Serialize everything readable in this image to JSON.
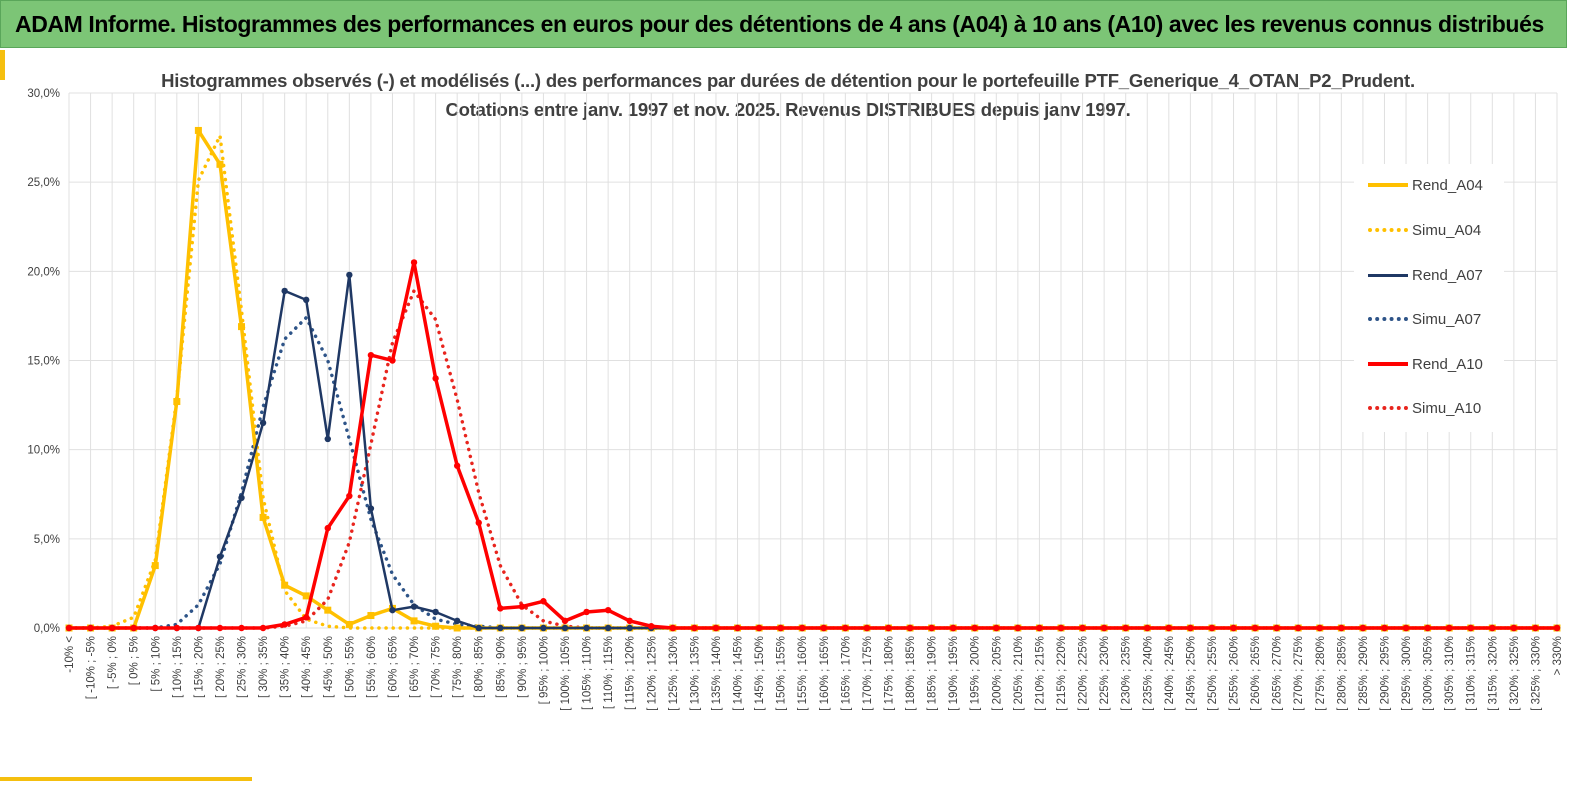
{
  "banner": {
    "title": "ADAM Informe. Histogrammes des performances en euros pour des détentions de 4 ans (A04) à 10 ans (A10) avec les revenus connus distribués"
  },
  "colors": {
    "banner_bg": "#7cc576",
    "accent": "#f5bf0f",
    "A04": "#ffc000",
    "A07": "#1f3864",
    "A07_simu": "#2e5488",
    "A10": "#ff0000",
    "A10_simu": "#e8251e",
    "grid": "#e0e0e0"
  },
  "chart_data": {
    "type": "line",
    "title_line1": "Histogrammes observés (-) et modélisés (...) des performances par durées de détention pour le portefeuille PTF_Generique_4_OTAN_P2_Prudent.",
    "title_line2": "Cotations entre janv. 1997 et nov. 2025. Revenus DISTRIBUES depuis janv 1997.",
    "xlabel": "",
    "ylabel": "",
    "ylim": [
      0,
      30
    ],
    "yticks": [
      "0,0%",
      "5,0%",
      "10,0%",
      "15,0%",
      "20,0%",
      "25,0%",
      "30,0%"
    ],
    "grid": true,
    "legend_position": "right",
    "categories": [
      "-10% <",
      "[ -10% ; -5%",
      "[ -5% ; 0%",
      "[ 0% ; 5%",
      "[ 5% ; 10%",
      "[ 10% ; 15%",
      "[ 15% ; 20%",
      "[ 20% ; 25%",
      "[ 25% ; 30%",
      "[ 30% ; 35%",
      "[ 35% ; 40%",
      "[ 40% ; 45%",
      "[ 45% ; 50%",
      "[ 50% ; 55%",
      "[ 55% ; 60%",
      "[ 60% ; 65%",
      "[ 65% ; 70%",
      "[ 70% ; 75%",
      "[ 75% ; 80%",
      "[ 80% ; 85%",
      "[ 85% ; 90%",
      "[ 90% ; 95%",
      "[ 95% ; 100%",
      "[ 100% ; 105%",
      "[ 105% ; 110%",
      "[ 110% ; 115%",
      "[ 115% ; 120%",
      "[ 120% ; 125%",
      "[ 125% ; 130%",
      "[ 130% ; 135%",
      "[ 135% ; 140%",
      "[ 140% ; 145%",
      "[ 145% ; 150%",
      "[ 150% ; 155%",
      "[ 155% ; 160%",
      "[ 160% ; 165%",
      "[ 165% ; 170%",
      "[ 170% ; 175%",
      "[ 175% ; 180%",
      "[ 180% ; 185%",
      "[ 185% ; 190%",
      "[ 190% ; 195%",
      "[ 195% ; 200%",
      "[ 200% ; 205%",
      "[ 205% ; 210%",
      "[ 210% ; 215%",
      "[ 215% ; 220%",
      "[ 220% ; 225%",
      "[ 225% ; 230%",
      "[ 230% ; 235%",
      "[ 235% ; 240%",
      "[ 240% ; 245%",
      "[ 245% ; 250%",
      "[ 250% ; 255%",
      "[ 255% ; 260%",
      "[ 260% ; 265%",
      "[ 265% ; 270%",
      "[ 270% ; 275%",
      "[ 275% ; 280%",
      "[ 280% ; 285%",
      "[ 285% ; 290%",
      "[ 290% ; 295%",
      "[ 295% ; 300%",
      "[ 300% ; 305%",
      "[ 305% ; 310%",
      "[ 310% ; 315%",
      "[ 315% ; 320%",
      "[ 320% ; 325%",
      "[ 325% ; 330%",
      "> 330%"
    ],
    "series": [
      {
        "name": "Rend_A04",
        "style": "solid",
        "marker": "square",
        "color": "#ffc000",
        "values": [
          0,
          0,
          0,
          0,
          3.5,
          12.7,
          27.9,
          26.0,
          16.9,
          6.2,
          2.4,
          1.8,
          1.0,
          0.2,
          0.7,
          1.1,
          0.4,
          0.1,
          0,
          0,
          0,
          0,
          0,
          0,
          0,
          0,
          0,
          0,
          0,
          0,
          0,
          0,
          0,
          0,
          0,
          0,
          0,
          0,
          0,
          0,
          0,
          0,
          0,
          0,
          0,
          0,
          0,
          0,
          0,
          0,
          0,
          0,
          0,
          0,
          0,
          0,
          0,
          0,
          0,
          0,
          0,
          0,
          0,
          0,
          0,
          0,
          0,
          0,
          0,
          0
        ]
      },
      {
        "name": "Simu_A04",
        "style": "dotted",
        "marker": "none",
        "color": "#ffc000",
        "values": [
          0,
          0,
          0.1,
          0.6,
          3.8,
          12.9,
          25.1,
          27.6,
          17.8,
          7.3,
          2.1,
          0.5,
          0.1,
          0,
          0,
          0,
          0,
          0,
          0,
          0,
          0,
          0,
          0,
          0,
          0,
          0,
          0,
          0,
          0,
          0,
          0,
          0,
          0,
          0,
          0,
          0,
          0,
          0,
          0,
          0,
          0,
          0,
          0,
          0,
          0,
          0,
          0,
          0,
          0,
          0,
          0,
          0,
          0,
          0,
          0,
          0,
          0,
          0,
          0,
          0,
          0,
          0,
          0,
          0,
          0,
          0,
          0,
          0,
          0,
          0
        ]
      },
      {
        "name": "Rend_A07",
        "style": "solid",
        "marker": "circle",
        "color": "#1f3864",
        "values": [
          0,
          0,
          0,
          0,
          0,
          0,
          0,
          4.0,
          7.3,
          11.5,
          18.9,
          18.4,
          10.6,
          19.8,
          6.7,
          1.0,
          1.2,
          0.9,
          0.4,
          0,
          0,
          0,
          0,
          0,
          0,
          0,
          0,
          0,
          0,
          0,
          0,
          0,
          0,
          0,
          0,
          0,
          0,
          0,
          0,
          0,
          0,
          0,
          0,
          0,
          0,
          0,
          0,
          0,
          0,
          0,
          0,
          0,
          0,
          0,
          0,
          0,
          0,
          0,
          0,
          0,
          0,
          0,
          0,
          0,
          0,
          0,
          0,
          0,
          0,
          0
        ]
      },
      {
        "name": "Simu_A07",
        "style": "dotted",
        "marker": "none",
        "color": "#2e5488",
        "values": [
          0,
          0,
          0,
          0,
          0,
          0.2,
          1.3,
          3.6,
          7.6,
          12.4,
          16.2,
          17.4,
          15.0,
          10.6,
          6.1,
          3.0,
          1.3,
          0.5,
          0.2,
          0.1,
          0,
          0,
          0,
          0,
          0,
          0,
          0,
          0,
          0,
          0,
          0,
          0,
          0,
          0,
          0,
          0,
          0,
          0,
          0,
          0,
          0,
          0,
          0,
          0,
          0,
          0,
          0,
          0,
          0,
          0,
          0,
          0,
          0,
          0,
          0,
          0,
          0,
          0,
          0,
          0,
          0,
          0,
          0,
          0,
          0,
          0,
          0,
          0,
          0,
          0
        ]
      },
      {
        "name": "Rend_A10",
        "style": "solid",
        "marker": "circle",
        "color": "#ff0000",
        "values": [
          0,
          0,
          0,
          0,
          0,
          0,
          0,
          0,
          0,
          0,
          0.2,
          0.6,
          5.6,
          7.4,
          15.3,
          15.0,
          20.5,
          14.0,
          9.1,
          5.9,
          1.1,
          1.2,
          1.5,
          0.4,
          0.9,
          1.0,
          0.4,
          0.1,
          0,
          0,
          0,
          0,
          0,
          0,
          0,
          0,
          0,
          0,
          0,
          0,
          0,
          0,
          0,
          0,
          0,
          0,
          0,
          0,
          0,
          0,
          0,
          0,
          0,
          0,
          0,
          0,
          0,
          0,
          0,
          0,
          0,
          0,
          0,
          0,
          0,
          0,
          0,
          0,
          0,
          0
        ]
      },
      {
        "name": "Simu_A10",
        "style": "dotted",
        "marker": "none",
        "color": "#e8251e",
        "values": [
          0,
          0,
          0,
          0,
          0,
          0,
          0,
          0,
          0,
          0,
          0.1,
          0.4,
          1.6,
          4.8,
          10.3,
          16.0,
          18.9,
          17.3,
          12.8,
          7.6,
          3.5,
          1.3,
          0.4,
          0.1,
          0,
          0,
          0,
          0,
          0,
          0,
          0,
          0,
          0,
          0,
          0,
          0,
          0,
          0,
          0,
          0,
          0,
          0,
          0,
          0,
          0,
          0,
          0,
          0,
          0,
          0,
          0,
          0,
          0,
          0,
          0,
          0,
          0,
          0,
          0,
          0,
          0,
          0,
          0,
          0,
          0,
          0,
          0,
          0,
          0,
          0
        ]
      }
    ]
  }
}
